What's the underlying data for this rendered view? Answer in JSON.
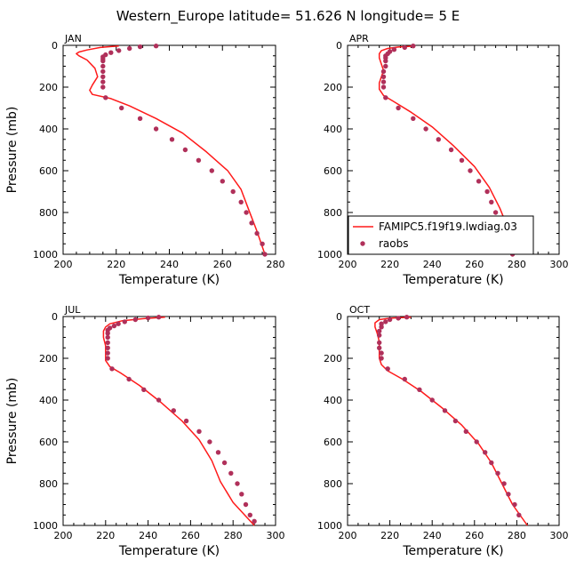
{
  "figure": {
    "title": "Western_Europe  latitude= 51.626 N longitude= 5 E"
  },
  "colors": {
    "model_line": "#ff1a1a",
    "obs_point": "#b0305a"
  },
  "legend": {
    "model_label": "FAMIPC5.f19f19.lwdiag.03",
    "obs_label": "raobs",
    "placement": "inside APR panel, lower-left"
  },
  "chart_data": [
    {
      "type": "line",
      "month": "JAN",
      "xlabel": "Temperature (K)",
      "ylabel": "Pressure (mb)",
      "xlim": [
        200,
        280
      ],
      "ylim": [
        1000,
        0
      ],
      "xticks": [
        "200",
        "220",
        "240",
        "260",
        "280"
      ],
      "yticks": [
        "0",
        "200",
        "400",
        "600",
        "800",
        "1000"
      ],
      "series": [
        {
          "name": "FAMIPC5.f19f19.lwdiag.03",
          "kind": "line",
          "points": [
            [
              221,
              3
            ],
            [
              214,
              10
            ],
            [
              209,
              22
            ],
            [
              206,
              32
            ],
            [
              205,
              40
            ],
            [
              206,
              50
            ],
            [
              209,
              70
            ],
            [
              212,
              110
            ],
            [
              213,
              150
            ],
            [
              211,
              190
            ],
            [
              210,
              215
            ],
            [
              211,
              235
            ],
            [
              218,
              255
            ],
            [
              225,
              290
            ],
            [
              235,
              350
            ],
            [
              245,
              420
            ],
            [
              254,
              510
            ],
            [
              262,
              600
            ],
            [
              267,
              690
            ],
            [
              270,
              790
            ],
            [
              273,
              890
            ],
            [
              276,
              1000
            ]
          ]
        },
        {
          "name": "raobs",
          "kind": "points",
          "points": [
            [
              235,
              3
            ],
            [
              229,
              7
            ],
            [
              225,
              15
            ],
            [
              221,
              25
            ],
            [
              218,
              35
            ],
            [
              216,
              45
            ],
            [
              215,
              55
            ],
            [
              215,
              65
            ],
            [
              215,
              75
            ],
            [
              215,
              100
            ],
            [
              215,
              125
            ],
            [
              215,
              150
            ],
            [
              215,
              175
            ],
            [
              215,
              200
            ],
            [
              216,
              250
            ],
            [
              222,
              300
            ],
            [
              229,
              350
            ],
            [
              235,
              400
            ],
            [
              241,
              450
            ],
            [
              246,
              500
            ],
            [
              251,
              550
            ],
            [
              256,
              600
            ],
            [
              260,
              650
            ],
            [
              264,
              700
            ],
            [
              267,
              750
            ],
            [
              269,
              800
            ],
            [
              271,
              850
            ],
            [
              273,
              900
            ],
            [
              275,
              950
            ],
            [
              276,
              1000
            ]
          ]
        }
      ]
    },
    {
      "type": "line",
      "month": "APR",
      "xlabel": "Temperature (K)",
      "ylabel": "",
      "xlim": [
        200,
        300
      ],
      "ylim": [
        1000,
        0
      ],
      "xticks": [
        "200",
        "220",
        "240",
        "260",
        "280",
        "300"
      ],
      "yticks": [
        "0",
        "200",
        "400",
        "600",
        "800",
        "1000"
      ],
      "series": [
        {
          "name": "FAMIPC5.f19f19.lwdiag.03",
          "kind": "line",
          "points": [
            [
              232,
              3
            ],
            [
              224,
              8
            ],
            [
              219,
              15
            ],
            [
              216,
              25
            ],
            [
              215,
              40
            ],
            [
              215,
              60
            ],
            [
              216,
              90
            ],
            [
              217,
              120
            ],
            [
              216,
              150
            ],
            [
              215,
              180
            ],
            [
              215,
              210
            ],
            [
              217,
              240
            ],
            [
              222,
              270
            ],
            [
              230,
              320
            ],
            [
              240,
              390
            ],
            [
              250,
              480
            ],
            [
              260,
              580
            ],
            [
              267,
              680
            ],
            [
              272,
              780
            ],
            [
              276,
              880
            ],
            [
              281,
              1000
            ]
          ]
        },
        {
          "name": "raobs",
          "kind": "points",
          "points": [
            [
              231,
              3
            ],
            [
              227,
              10
            ],
            [
              222,
              20
            ],
            [
              220,
              30
            ],
            [
              219,
              40
            ],
            [
              218,
              50
            ],
            [
              218,
              60
            ],
            [
              218,
              75
            ],
            [
              218,
              100
            ],
            [
              217,
              125
            ],
            [
              217,
              150
            ],
            [
              217,
              175
            ],
            [
              217,
              200
            ],
            [
              218,
              250
            ],
            [
              224,
              300
            ],
            [
              231,
              350
            ],
            [
              237,
              400
            ],
            [
              243,
              450
            ],
            [
              249,
              500
            ],
            [
              254,
              550
            ],
            [
              258,
              600
            ],
            [
              262,
              650
            ],
            [
              266,
              700
            ],
            [
              268,
              750
            ],
            [
              270,
              800
            ],
            [
              272,
              850
            ],
            [
              274,
              900
            ],
            [
              276,
              950
            ],
            [
              278,
              1000
            ]
          ]
        }
      ]
    },
    {
      "type": "line",
      "month": "JUL",
      "xlabel": "Temperature (K)",
      "ylabel": "Pressure (mb)",
      "xlim": [
        200,
        300
      ],
      "ylim": [
        1000,
        0
      ],
      "xticks": [
        "200",
        "220",
        "240",
        "260",
        "280",
        "300"
      ],
      "yticks": [
        "0",
        "200",
        "400",
        "600",
        "800",
        "1000"
      ],
      "series": [
        {
          "name": "FAMIPC5.f19f19.lwdiag.03",
          "kind": "line",
          "points": [
            [
              248,
              3
            ],
            [
              238,
              10
            ],
            [
              228,
              20
            ],
            [
              222,
              35
            ],
            [
              220,
              50
            ],
            [
              219,
              70
            ],
            [
              219,
              100
            ],
            [
              220,
              140
            ],
            [
              220,
              180
            ],
            [
              220,
              210
            ],
            [
              222,
              240
            ],
            [
              227,
              270
            ],
            [
              236,
              330
            ],
            [
              246,
              410
            ],
            [
              256,
              500
            ],
            [
              264,
              590
            ],
            [
              270,
              690
            ],
            [
              274,
              790
            ],
            [
              280,
              890
            ],
            [
              290,
              1000
            ]
          ]
        },
        {
          "name": "raobs",
          "kind": "points",
          "points": [
            [
              245,
              3
            ],
            [
              240,
              7
            ],
            [
              234,
              15
            ],
            [
              229,
              25
            ],
            [
              226,
              35
            ],
            [
              224,
              45
            ],
            [
              222,
              55
            ],
            [
              221,
              65
            ],
            [
              221,
              80
            ],
            [
              221,
              100
            ],
            [
              221,
              125
            ],
            [
              221,
              150
            ],
            [
              221,
              175
            ],
            [
              221,
              200
            ],
            [
              223,
              250
            ],
            [
              231,
              300
            ],
            [
              238,
              350
            ],
            [
              245,
              400
            ],
            [
              252,
              450
            ],
            [
              258,
              500
            ],
            [
              264,
              550
            ],
            [
              269,
              600
            ],
            [
              273,
              650
            ],
            [
              276,
              700
            ],
            [
              279,
              750
            ],
            [
              282,
              800
            ],
            [
              284,
              850
            ],
            [
              286,
              900
            ],
            [
              288,
              950
            ],
            [
              290,
              980
            ]
          ]
        }
      ]
    },
    {
      "type": "line",
      "month": "OCT",
      "xlabel": "Temperature (K)",
      "ylabel": "",
      "xlim": [
        200,
        300
      ],
      "ylim": [
        1000,
        0
      ],
      "xticks": [
        "200",
        "220",
        "240",
        "260",
        "280",
        "300"
      ],
      "yticks": [
        "0",
        "200",
        "400",
        "600",
        "800",
        "1000"
      ],
      "series": [
        {
          "name": "FAMIPC5.f19f19.lwdiag.03",
          "kind": "line",
          "points": [
            [
              230,
              3
            ],
            [
              220,
              8
            ],
            [
              215,
              15
            ],
            [
              213,
              30
            ],
            [
              213,
              50
            ],
            [
              214,
              80
            ],
            [
              215,
              120
            ],
            [
              215,
              160
            ],
            [
              215,
              200
            ],
            [
              216,
              230
            ],
            [
              219,
              260
            ],
            [
              226,
              300
            ],
            [
              235,
              360
            ],
            [
              245,
              440
            ],
            [
              254,
              520
            ],
            [
              262,
              610
            ],
            [
              268,
              700
            ],
            [
              273,
              800
            ],
            [
              278,
              900
            ],
            [
              285,
              1000
            ]
          ]
        },
        {
          "name": "raobs",
          "kind": "points",
          "points": [
            [
              228,
              3
            ],
            [
              224,
              8
            ],
            [
              220,
              15
            ],
            [
              218,
              25
            ],
            [
              216,
              35
            ],
            [
              216,
              50
            ],
            [
              215,
              70
            ],
            [
              215,
              90
            ],
            [
              215,
              125
            ],
            [
              215,
              150
            ],
            [
              216,
              175
            ],
            [
              216,
              200
            ],
            [
              219,
              250
            ],
            [
              227,
              300
            ],
            [
              234,
              350
            ],
            [
              240,
              400
            ],
            [
              246,
              450
            ],
            [
              251,
              500
            ],
            [
              256,
              550
            ],
            [
              261,
              600
            ],
            [
              265,
              650
            ],
            [
              268,
              700
            ],
            [
              271,
              750
            ],
            [
              274,
              800
            ],
            [
              276,
              850
            ],
            [
              279,
              900
            ],
            [
              281,
              950
            ]
          ]
        }
      ]
    }
  ]
}
